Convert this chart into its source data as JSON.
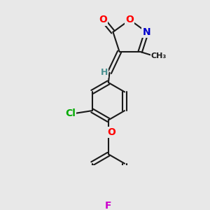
{
  "background_color": "#e8e8e8",
  "bond_color": "#1a1a1a",
  "atom_colors": {
    "O": "#ff0000",
    "N": "#0000cc",
    "Cl": "#00aa00",
    "F": "#cc00cc",
    "H": "#4a9090",
    "C": "#1a1a1a"
  },
  "bond_width": 1.5,
  "dpi": 100,
  "figsize": [
    3.0,
    3.0
  ]
}
